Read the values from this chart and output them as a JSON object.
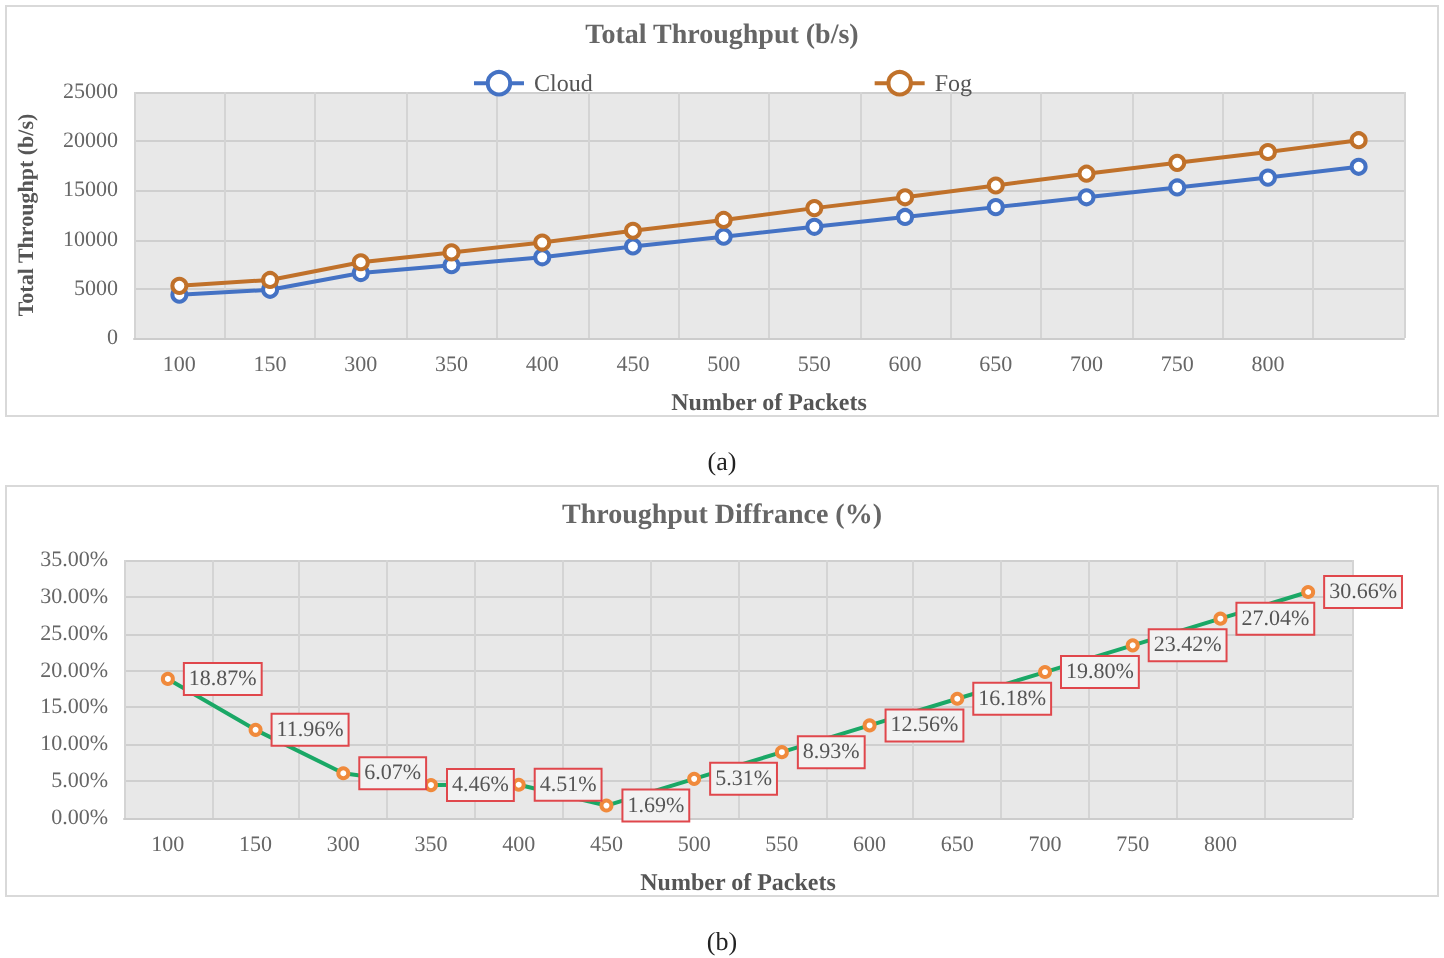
{
  "chart_data": [
    {
      "type": "line",
      "title": "Total Throughput (b/s)",
      "xlabel": "Number of Packets",
      "ylabel": "Total Throughpt (b/s)",
      "categories": [
        "100",
        "150",
        "300",
        "350",
        "400",
        "450",
        "500",
        "550",
        "600",
        "650",
        "700",
        "750",
        "800",
        null
      ],
      "series": [
        {
          "name": "Cloud",
          "color": "#4472c4",
          "values": [
            4400,
            4900,
            6600,
            7400,
            8200,
            9300,
            10300,
            11300,
            12300,
            13300,
            14300,
            15300,
            16300,
            17400
          ]
        },
        {
          "name": "Fog",
          "color": "#c0712a",
          "values": [
            5300,
            5900,
            7700,
            8700,
            9700,
            10900,
            12000,
            13200,
            14300,
            15500,
            16700,
            17800,
            18900,
            20100
          ]
        }
      ],
      "ylim": [
        0,
        25000
      ],
      "yticks": [
        0,
        5000,
        10000,
        15000,
        20000,
        25000
      ],
      "grid": true,
      "legend": "top",
      "marker": "circle",
      "annotations": [
        "(a)"
      ]
    },
    {
      "type": "line",
      "title": "Throughput Diffrance (%)",
      "xlabel": "Number of Packets",
      "categories": [
        "100",
        "150",
        "300",
        "350",
        "400",
        "450",
        "500",
        "550",
        "600",
        "650",
        "700",
        "750",
        "800",
        null
      ],
      "series": [
        {
          "color": "#1aa866",
          "values": [
            18.87,
            11.96,
            6.07,
            4.46,
            4.51,
            1.69,
            5.31,
            8.93,
            12.56,
            16.18,
            19.8,
            23.42,
            27.04,
            30.66
          ],
          "value_labels": [
            "18.87%",
            "11.96%",
            "6.07%",
            "4.46%",
            "4.51%",
            "1.69%",
            "5.31%",
            "8.93%",
            "12.56%",
            "16.18%",
            "19.80%",
            "23.42%",
            "27.04%",
            "30.66%"
          ]
        }
      ],
      "ylim": [
        0,
        35
      ],
      "yticks": [
        {
          "value": 0,
          "label": "0.00%"
        },
        {
          "value": 5,
          "label": "5.00%"
        },
        {
          "value": 10,
          "label": "10.00%"
        },
        {
          "value": 15,
          "label": "15.00%"
        },
        {
          "value": 20,
          "label": "20.00%"
        },
        {
          "value": 25,
          "label": "25.00%"
        },
        {
          "value": 30,
          "label": "30.00%"
        },
        {
          "value": 35,
          "label": "35.00%"
        }
      ],
      "grid": true,
      "legend": false,
      "marker": "circle",
      "annotations": [
        "(b)"
      ]
    }
  ]
}
